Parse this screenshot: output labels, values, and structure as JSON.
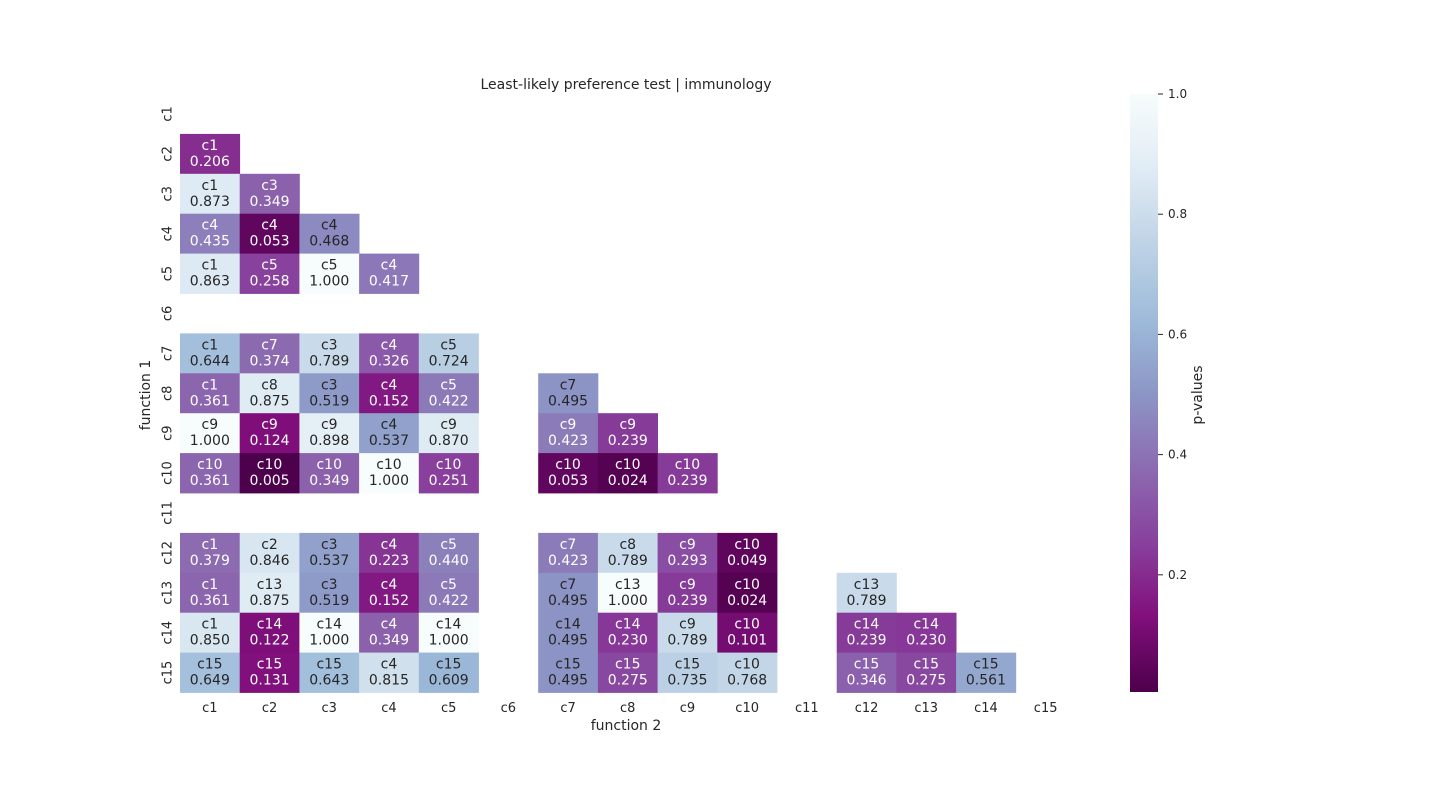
{
  "chart_data": {
    "type": "heatmap",
    "title": "Least-likely preference test | immunology",
    "xlabel": "function 2",
    "ylabel": "function 1",
    "x_categories": [
      "c1",
      "c2",
      "c3",
      "c4",
      "c5",
      "c6",
      "c7",
      "c8",
      "c9",
      "c10",
      "c11",
      "c12",
      "c13",
      "c14",
      "c15"
    ],
    "y_categories": [
      "c1",
      "c2",
      "c3",
      "c4",
      "c5",
      "c6",
      "c7",
      "c8",
      "c9",
      "c10",
      "c11",
      "c12",
      "c13",
      "c14",
      "c15"
    ],
    "colorbar": {
      "label": "p-values",
      "range": [
        0.005,
        1.0
      ],
      "ticks": [
        0.2,
        0.4,
        0.6,
        0.8,
        1.0
      ],
      "tick_labels": [
        "0.2",
        "0.4",
        "0.6",
        "0.8",
        "1.0"
      ],
      "colormap": "BuPu_r",
      "colors": [
        "#4d004b",
        "#810f7c",
        "#88419d",
        "#8c6bb1",
        "#8c96c6",
        "#9ebcda",
        "#bfd3e6",
        "#e0ecf4",
        "#f7fcfd"
      ]
    },
    "cells": [
      {
        "row": "c2",
        "col": "c1",
        "label": "c1",
        "value": 0.206
      },
      {
        "row": "c3",
        "col": "c1",
        "label": "c1",
        "value": 0.873
      },
      {
        "row": "c3",
        "col": "c2",
        "label": "c3",
        "value": 0.349
      },
      {
        "row": "c4",
        "col": "c1",
        "label": "c4",
        "value": 0.435
      },
      {
        "row": "c4",
        "col": "c2",
        "label": "c4",
        "value": 0.053
      },
      {
        "row": "c4",
        "col": "c3",
        "label": "c4",
        "value": 0.468
      },
      {
        "row": "c5",
        "col": "c1",
        "label": "c1",
        "value": 0.863
      },
      {
        "row": "c5",
        "col": "c2",
        "label": "c5",
        "value": 0.258
      },
      {
        "row": "c5",
        "col": "c3",
        "label": "c5",
        "value": 1.0
      },
      {
        "row": "c5",
        "col": "c4",
        "label": "c4",
        "value": 0.417
      },
      {
        "row": "c7",
        "col": "c1",
        "label": "c1",
        "value": 0.644
      },
      {
        "row": "c7",
        "col": "c2",
        "label": "c7",
        "value": 0.374
      },
      {
        "row": "c7",
        "col": "c3",
        "label": "c3",
        "value": 0.789
      },
      {
        "row": "c7",
        "col": "c4",
        "label": "c4",
        "value": 0.326
      },
      {
        "row": "c7",
        "col": "c5",
        "label": "c5",
        "value": 0.724
      },
      {
        "row": "c8",
        "col": "c1",
        "label": "c1",
        "value": 0.361
      },
      {
        "row": "c8",
        "col": "c2",
        "label": "c8",
        "value": 0.875
      },
      {
        "row": "c8",
        "col": "c3",
        "label": "c3",
        "value": 0.519
      },
      {
        "row": "c8",
        "col": "c4",
        "label": "c4",
        "value": 0.152
      },
      {
        "row": "c8",
        "col": "c5",
        "label": "c5",
        "value": 0.422
      },
      {
        "row": "c8",
        "col": "c7",
        "label": "c7",
        "value": 0.495
      },
      {
        "row": "c9",
        "col": "c1",
        "label": "c9",
        "value": 1.0
      },
      {
        "row": "c9",
        "col": "c2",
        "label": "c9",
        "value": 0.124
      },
      {
        "row": "c9",
        "col": "c3",
        "label": "c9",
        "value": 0.898
      },
      {
        "row": "c9",
        "col": "c4",
        "label": "c4",
        "value": 0.537
      },
      {
        "row": "c9",
        "col": "c5",
        "label": "c9",
        "value": 0.87
      },
      {
        "row": "c9",
        "col": "c7",
        "label": "c9",
        "value": 0.423
      },
      {
        "row": "c9",
        "col": "c8",
        "label": "c9",
        "value": 0.239
      },
      {
        "row": "c10",
        "col": "c1",
        "label": "c10",
        "value": 0.361
      },
      {
        "row": "c10",
        "col": "c2",
        "label": "c10",
        "value": 0.005
      },
      {
        "row": "c10",
        "col": "c3",
        "label": "c10",
        "value": 0.349
      },
      {
        "row": "c10",
        "col": "c4",
        "label": "c10",
        "value": 1.0
      },
      {
        "row": "c10",
        "col": "c5",
        "label": "c10",
        "value": 0.251
      },
      {
        "row": "c10",
        "col": "c7",
        "label": "c10",
        "value": 0.053
      },
      {
        "row": "c10",
        "col": "c8",
        "label": "c10",
        "value": 0.024
      },
      {
        "row": "c10",
        "col": "c9",
        "label": "c10",
        "value": 0.239
      },
      {
        "row": "c12",
        "col": "c1",
        "label": "c1",
        "value": 0.379
      },
      {
        "row": "c12",
        "col": "c2",
        "label": "c2",
        "value": 0.846
      },
      {
        "row": "c12",
        "col": "c3",
        "label": "c3",
        "value": 0.537
      },
      {
        "row": "c12",
        "col": "c4",
        "label": "c4",
        "value": 0.223
      },
      {
        "row": "c12",
        "col": "c5",
        "label": "c5",
        "value": 0.44
      },
      {
        "row": "c12",
        "col": "c7",
        "label": "c7",
        "value": 0.423
      },
      {
        "row": "c12",
        "col": "c8",
        "label": "c8",
        "value": 0.789
      },
      {
        "row": "c12",
        "col": "c9",
        "label": "c9",
        "value": 0.293
      },
      {
        "row": "c12",
        "col": "c10",
        "label": "c10",
        "value": 0.049
      },
      {
        "row": "c13",
        "col": "c1",
        "label": "c1",
        "value": 0.361
      },
      {
        "row": "c13",
        "col": "c2",
        "label": "c13",
        "value": 0.875
      },
      {
        "row": "c13",
        "col": "c3",
        "label": "c3",
        "value": 0.519
      },
      {
        "row": "c13",
        "col": "c4",
        "label": "c4",
        "value": 0.152
      },
      {
        "row": "c13",
        "col": "c5",
        "label": "c5",
        "value": 0.422
      },
      {
        "row": "c13",
        "col": "c7",
        "label": "c7",
        "value": 0.495
      },
      {
        "row": "c13",
        "col": "c8",
        "label": "c13",
        "value": 1.0
      },
      {
        "row": "c13",
        "col": "c9",
        "label": "c9",
        "value": 0.239
      },
      {
        "row": "c13",
        "col": "c10",
        "label": "c10",
        "value": 0.024
      },
      {
        "row": "c13",
        "col": "c12",
        "label": "c13",
        "value": 0.789
      },
      {
        "row": "c14",
        "col": "c1",
        "label": "c1",
        "value": 0.85
      },
      {
        "row": "c14",
        "col": "c2",
        "label": "c14",
        "value": 0.122
      },
      {
        "row": "c14",
        "col": "c3",
        "label": "c14",
        "value": 1.0
      },
      {
        "row": "c14",
        "col": "c4",
        "label": "c4",
        "value": 0.349
      },
      {
        "row": "c14",
        "col": "c5",
        "label": "c14",
        "value": 1.0
      },
      {
        "row": "c14",
        "col": "c7",
        "label": "c14",
        "value": 0.495
      },
      {
        "row": "c14",
        "col": "c8",
        "label": "c14",
        "value": 0.23
      },
      {
        "row": "c14",
        "col": "c9",
        "label": "c9",
        "value": 0.789
      },
      {
        "row": "c14",
        "col": "c10",
        "label": "c10",
        "value": 0.101
      },
      {
        "row": "c14",
        "col": "c12",
        "label": "c14",
        "value": 0.239
      },
      {
        "row": "c14",
        "col": "c13",
        "label": "c14",
        "value": 0.23
      },
      {
        "row": "c15",
        "col": "c1",
        "label": "c15",
        "value": 0.649
      },
      {
        "row": "c15",
        "col": "c2",
        "label": "c15",
        "value": 0.131
      },
      {
        "row": "c15",
        "col": "c3",
        "label": "c15",
        "value": 0.643
      },
      {
        "row": "c15",
        "col": "c4",
        "label": "c4",
        "value": 0.815
      },
      {
        "row": "c15",
        "col": "c5",
        "label": "c15",
        "value": 0.609
      },
      {
        "row": "c15",
        "col": "c7",
        "label": "c15",
        "value": 0.495
      },
      {
        "row": "c15",
        "col": "c8",
        "label": "c15",
        "value": 0.275
      },
      {
        "row": "c15",
        "col": "c9",
        "label": "c15",
        "value": 0.735
      },
      {
        "row": "c15",
        "col": "c10",
        "label": "c10",
        "value": 0.768
      },
      {
        "row": "c15",
        "col": "c12",
        "label": "c15",
        "value": 0.346
      },
      {
        "row": "c15",
        "col": "c13",
        "label": "c15",
        "value": 0.275
      },
      {
        "row": "c15",
        "col": "c14",
        "label": "c15",
        "value": 0.561
      }
    ]
  }
}
